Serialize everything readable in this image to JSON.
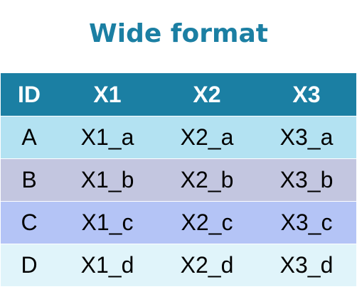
{
  "title": "Wide format",
  "colors": {
    "title": "#1b7fa3",
    "header_bg": "#1b7fa3",
    "row_bg": [
      "#b3e2f2",
      "#c3c6e0",
      "#b4c4f6",
      "#e0f4fa"
    ]
  },
  "table": {
    "headers": [
      "ID",
      "X1",
      "X2",
      "X3"
    ],
    "rows": [
      [
        "A",
        "X1_a",
        "X2_a",
        "X3_a"
      ],
      [
        "B",
        "X1_b",
        "X2_b",
        "X3_b"
      ],
      [
        "C",
        "X1_c",
        "X2_c",
        "X3_c"
      ],
      [
        "D",
        "X1_d",
        "X2_d",
        "X3_d"
      ]
    ]
  }
}
